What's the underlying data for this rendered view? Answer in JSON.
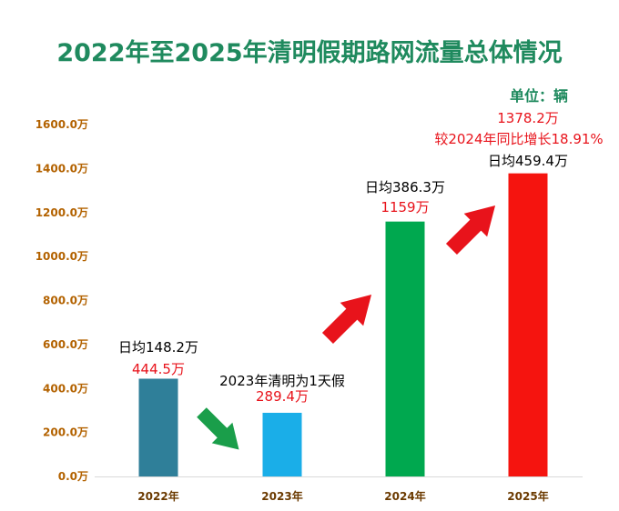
{
  "chart_data": {
    "type": "bar",
    "title": "2022年至2025年清明假期路网流量总体情况",
    "unit_label": "单位：辆",
    "categories": [
      "2022年",
      "2023年",
      "2024年",
      "2025年"
    ],
    "values": [
      444.5,
      289.4,
      1159,
      1378.2
    ],
    "value_unit": "万",
    "ylim": [
      0,
      1600
    ],
    "yticks": [
      "0.0万",
      "200.0万",
      "400.0万",
      "600.0万",
      "800.0万",
      "1000.0万",
      "1200.0万",
      "1400.0万",
      "1600.0万"
    ],
    "grid": false,
    "colors": [
      "#2f7f99",
      "#1aaee8",
      "#00a84f",
      "#f5140f"
    ],
    "bar_labels": [
      "444.5万",
      "289.4万",
      "1159万",
      "1378.2万"
    ],
    "annotations": [
      {
        "text": "日均148.2万",
        "color": "black"
      },
      {
        "text": "2023年清明为1天假",
        "color": "black"
      },
      {
        "text": "日均386.3万",
        "color": "black"
      },
      {
        "text": "日均459.4万",
        "color": "black"
      },
      {
        "text": "较2024年同比增长18.91%",
        "color": "red"
      }
    ],
    "arrows": [
      {
        "direction": "down-right",
        "color": "#1a9e4a"
      },
      {
        "direction": "up-right",
        "color": "#e8131b"
      },
      {
        "direction": "up-right",
        "color": "#e8131b"
      }
    ]
  }
}
